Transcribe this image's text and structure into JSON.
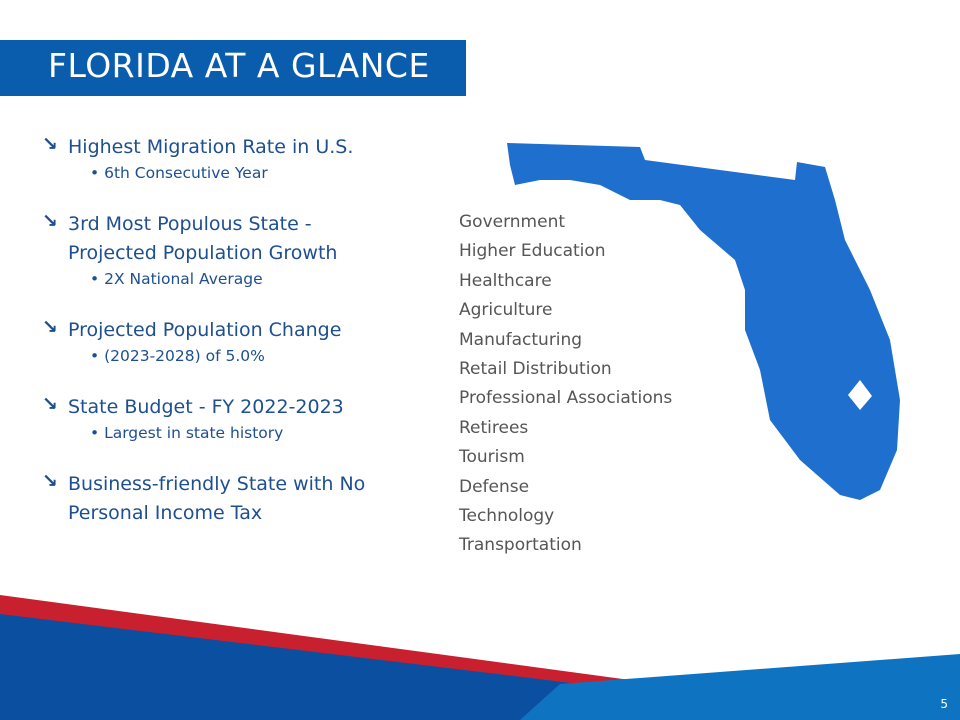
{
  "header": {
    "title": "FLORIDA AT A GLANCE"
  },
  "bullets": [
    {
      "lines": [
        "Highest Migration Rate in U.S."
      ],
      "sub": "6th Consecutive Year"
    },
    {
      "lines": [
        "3rd Most Populous State -",
        "Projected Population Growth"
      ],
      "sub": "2X National Average"
    },
    {
      "lines": [
        "Projected Population Change"
      ],
      "sub": "(2023-2028) of 5.0%"
    },
    {
      "lines": [
        "State Budget - FY 2022-2023"
      ],
      "sub": "Largest in state history"
    },
    {
      "lines": [
        "Business-friendly State with No",
        "Personal Income Tax"
      ]
    }
  ],
  "sectors": [
    "Government",
    "Higher Education",
    "Healthcare",
    "Agriculture",
    "Manufacturing",
    "Retail Distribution",
    "Professional Associations",
    "Retirees",
    "Tourism",
    "Defense",
    "Technology",
    "Transportation"
  ],
  "page_number": "5"
}
